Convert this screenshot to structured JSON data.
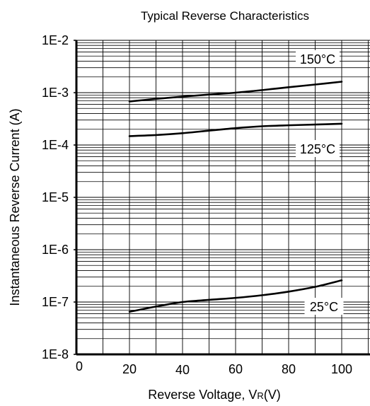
{
  "chart_data": {
    "type": "line",
    "title": "Typical Reverse Characteristics",
    "xlabel": "Reverse  Voltage, V",
    "xlabel_subscript": "R",
    "xlabel_unit": "(V)",
    "ylabel": "Instantaneous Reverse Current (A)",
    "y_scale": "log",
    "xlim": [
      0,
      100
    ],
    "ylim": [
      1e-08,
      0.01
    ],
    "x_ticks": [
      0,
      20,
      40,
      60,
      80,
      100
    ],
    "x_tick_labels": [
      "0",
      "20",
      "40",
      "60",
      "80",
      "100"
    ],
    "y_ticks": [
      1e-08,
      1e-07,
      1e-06,
      1e-05,
      0.0001,
      0.001,
      0.01
    ],
    "y_tick_labels": [
      "1E-8",
      "1E-7",
      "1E-6",
      "1E-5",
      "1E-4",
      "1E-3",
      "1E-2"
    ],
    "grid": true,
    "legend": "none",
    "series": [
      {
        "name": "150°C",
        "x": [
          20,
          30,
          40,
          50,
          60,
          70,
          80,
          90,
          100
        ],
        "y": [
          0.00068,
          0.00076,
          0.00084,
          0.00092,
          0.001,
          0.00112,
          0.00127,
          0.00143,
          0.00162
        ]
      },
      {
        "name": "125°C",
        "x": [
          20,
          30,
          40,
          50,
          60,
          70,
          80,
          90,
          100
        ],
        "y": [
          0.000148,
          0.000155,
          0.000168,
          0.000188,
          0.00021,
          0.000228,
          0.000238,
          0.000246,
          0.000255
        ]
      },
      {
        "name": "25°C",
        "x": [
          20,
          30,
          40,
          50,
          60,
          70,
          80,
          90,
          100
        ],
        "y": [
          6.5e-08,
          8.2e-08,
          1e-07,
          1.1e-07,
          1.2e-07,
          1.35e-07,
          1.58e-07,
          1.95e-07,
          2.6e-07
        ]
      }
    ],
    "annotations": [
      "150°C",
      "125°C",
      "25°C"
    ]
  }
}
